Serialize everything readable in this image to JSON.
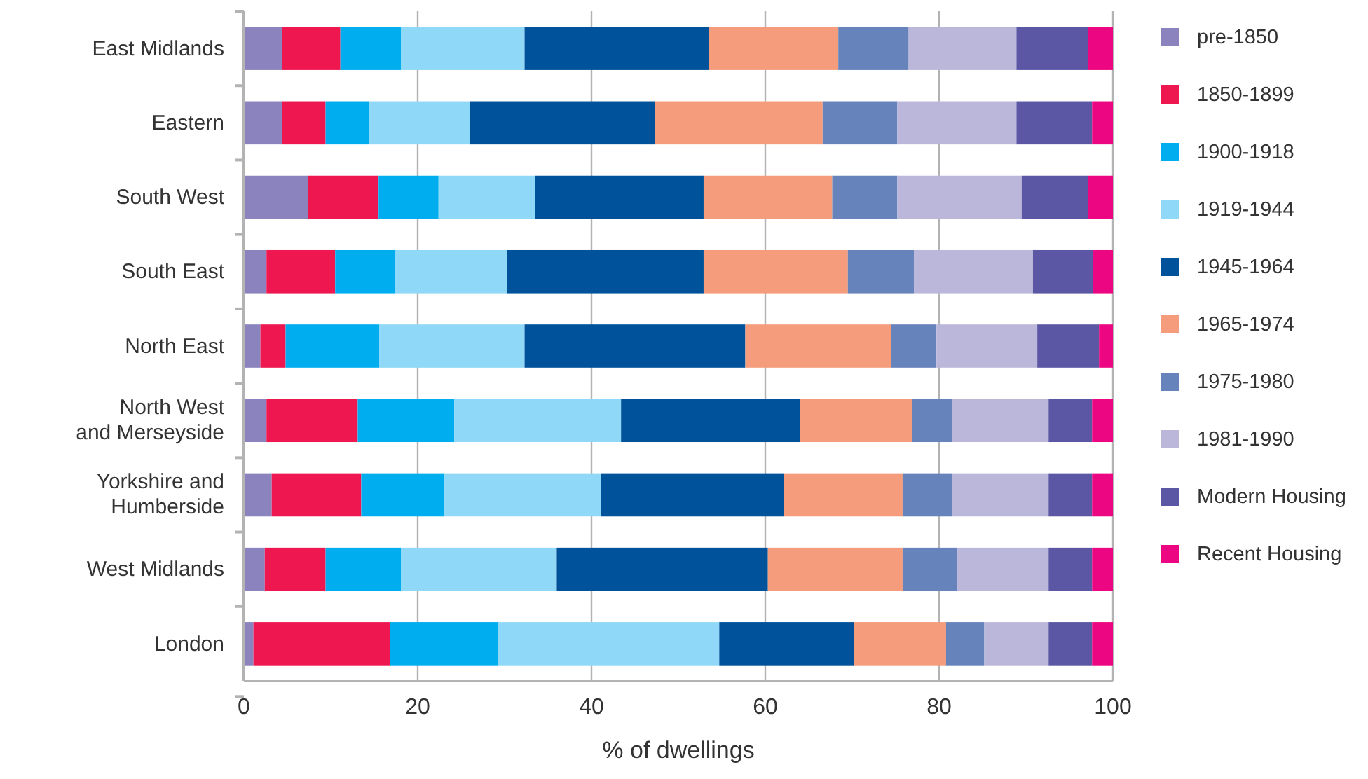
{
  "chart_data": {
    "type": "bar",
    "orientation": "horizontal",
    "stacked": true,
    "xlabel": "% of dwellings",
    "categories": [
      "East Midlands",
      "Eastern",
      "South West",
      "South East",
      "North East",
      "North West and Merseyside",
      "Yorkshire and Humberside",
      "West Midlands",
      "London"
    ],
    "series": [
      {
        "name": "pre-1850",
        "color": "#8a83bd",
        "values": [
          4.4,
          4.4,
          7.4,
          2.6,
          1.9,
          2.6,
          3.2,
          2.4,
          1.1
        ]
      },
      {
        "name": "1850-1899",
        "color": "#ee1750",
        "values": [
          6.7,
          5.0,
          8.1,
          7.9,
          2.9,
          10.5,
          10.3,
          7.0,
          15.7
        ]
      },
      {
        "name": "1900-1918",
        "color": "#00aeef",
        "values": [
          7.0,
          5.0,
          6.9,
          6.9,
          10.8,
          11.1,
          9.6,
          8.7,
          12.4
        ]
      },
      {
        "name": "1919-1944",
        "color": "#8fd8f7",
        "values": [
          14.2,
          11.6,
          11.1,
          12.9,
          16.7,
          19.2,
          18.0,
          17.9,
          25.5
        ]
      },
      {
        "name": "1945-1964",
        "color": "#00529b",
        "values": [
          21.2,
          21.3,
          19.4,
          22.6,
          25.4,
          20.6,
          21.0,
          24.3,
          15.5
        ]
      },
      {
        "name": "1965-1974",
        "color": "#f59c7c",
        "values": [
          14.9,
          19.3,
          14.8,
          16.6,
          16.8,
          12.9,
          13.7,
          15.5,
          10.6
        ]
      },
      {
        "name": "1975-1980",
        "color": "#6683bb",
        "values": [
          8.1,
          8.6,
          7.5,
          7.6,
          5.2,
          4.6,
          5.7,
          6.3,
          4.4
        ]
      },
      {
        "name": "1981-1990",
        "color": "#bbb7da",
        "values": [
          12.4,
          13.7,
          14.3,
          13.7,
          11.6,
          11.1,
          11.1,
          10.5,
          7.4
        ]
      },
      {
        "name": "Modern Housing",
        "color": "#5b57a5",
        "values": [
          8.2,
          8.7,
          7.6,
          6.9,
          7.1,
          5.0,
          5.0,
          5.0,
          5.0
        ]
      },
      {
        "name": "Recent Housing",
        "color": "#ec0681",
        "values": [
          2.9,
          2.4,
          2.9,
          2.3,
          1.6,
          2.4,
          2.4,
          2.4,
          2.4
        ]
      }
    ],
    "xlim": [
      0,
      100
    ],
    "xticks": [
      0,
      20,
      40,
      60,
      80,
      100
    ],
    "grid": "x",
    "legend": "right"
  }
}
